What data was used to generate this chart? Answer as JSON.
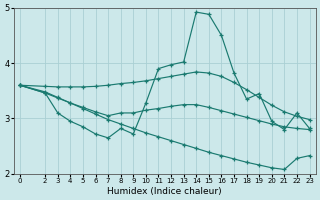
{
  "title": "",
  "xlabel": "Humidex (Indice chaleur)",
  "ylabel": "",
  "bg_color": "#cce8ea",
  "line_color": "#1a7a70",
  "grid_color": "#aad0d4",
  "xlim": [
    -0.5,
    23.5
  ],
  "ylim": [
    2,
    5
  ],
  "yticks": [
    2,
    3,
    4,
    5
  ],
  "xticks": [
    0,
    2,
    3,
    4,
    5,
    6,
    7,
    8,
    9,
    10,
    11,
    12,
    13,
    14,
    15,
    16,
    17,
    18,
    19,
    20,
    21,
    22,
    23
  ],
  "line1_x": [
    0,
    2,
    3,
    4,
    5,
    6,
    7,
    8,
    9,
    10,
    11,
    12,
    13,
    14,
    15,
    16,
    17,
    18,
    19,
    20,
    21,
    22,
    23
  ],
  "line1_y": [
    3.6,
    3.58,
    3.57,
    3.57,
    3.57,
    3.58,
    3.6,
    3.63,
    3.65,
    3.68,
    3.72,
    3.76,
    3.8,
    3.84,
    3.82,
    3.76,
    3.65,
    3.52,
    3.38,
    3.24,
    3.12,
    3.04,
    2.98
  ],
  "line2_x": [
    0,
    2,
    3,
    4,
    5,
    6,
    7,
    8,
    9,
    10,
    11,
    12,
    13,
    14,
    15,
    16,
    17,
    18,
    19,
    20,
    21,
    22,
    23
  ],
  "line2_y": [
    3.6,
    3.46,
    3.1,
    2.95,
    2.85,
    2.72,
    2.65,
    2.82,
    2.72,
    3.28,
    3.9,
    3.97,
    4.02,
    4.92,
    4.88,
    4.5,
    3.82,
    3.35,
    3.45,
    2.95,
    2.8,
    3.1,
    2.82
  ],
  "line3_x": [
    0,
    2,
    3,
    4,
    5,
    6,
    7,
    8,
    9,
    10,
    11,
    12,
    13,
    14,
    15,
    16,
    17,
    18,
    19,
    20,
    21,
    22,
    23
  ],
  "line3_y": [
    3.6,
    3.46,
    3.37,
    3.28,
    3.2,
    3.12,
    3.05,
    3.1,
    3.1,
    3.15,
    3.18,
    3.22,
    3.25,
    3.25,
    3.2,
    3.14,
    3.08,
    3.02,
    2.96,
    2.9,
    2.85,
    2.82,
    2.8
  ],
  "line4_x": [
    0,
    2,
    3,
    4,
    5,
    6,
    7,
    8,
    9,
    10,
    11,
    12,
    13,
    14,
    15,
    16,
    17,
    18,
    19,
    20,
    21,
    22,
    23
  ],
  "line4_y": [
    3.6,
    3.48,
    3.38,
    3.28,
    3.18,
    3.08,
    2.98,
    2.9,
    2.82,
    2.74,
    2.67,
    2.6,
    2.53,
    2.46,
    2.39,
    2.33,
    2.27,
    2.21,
    2.16,
    2.11,
    2.08,
    2.28,
    2.33
  ]
}
